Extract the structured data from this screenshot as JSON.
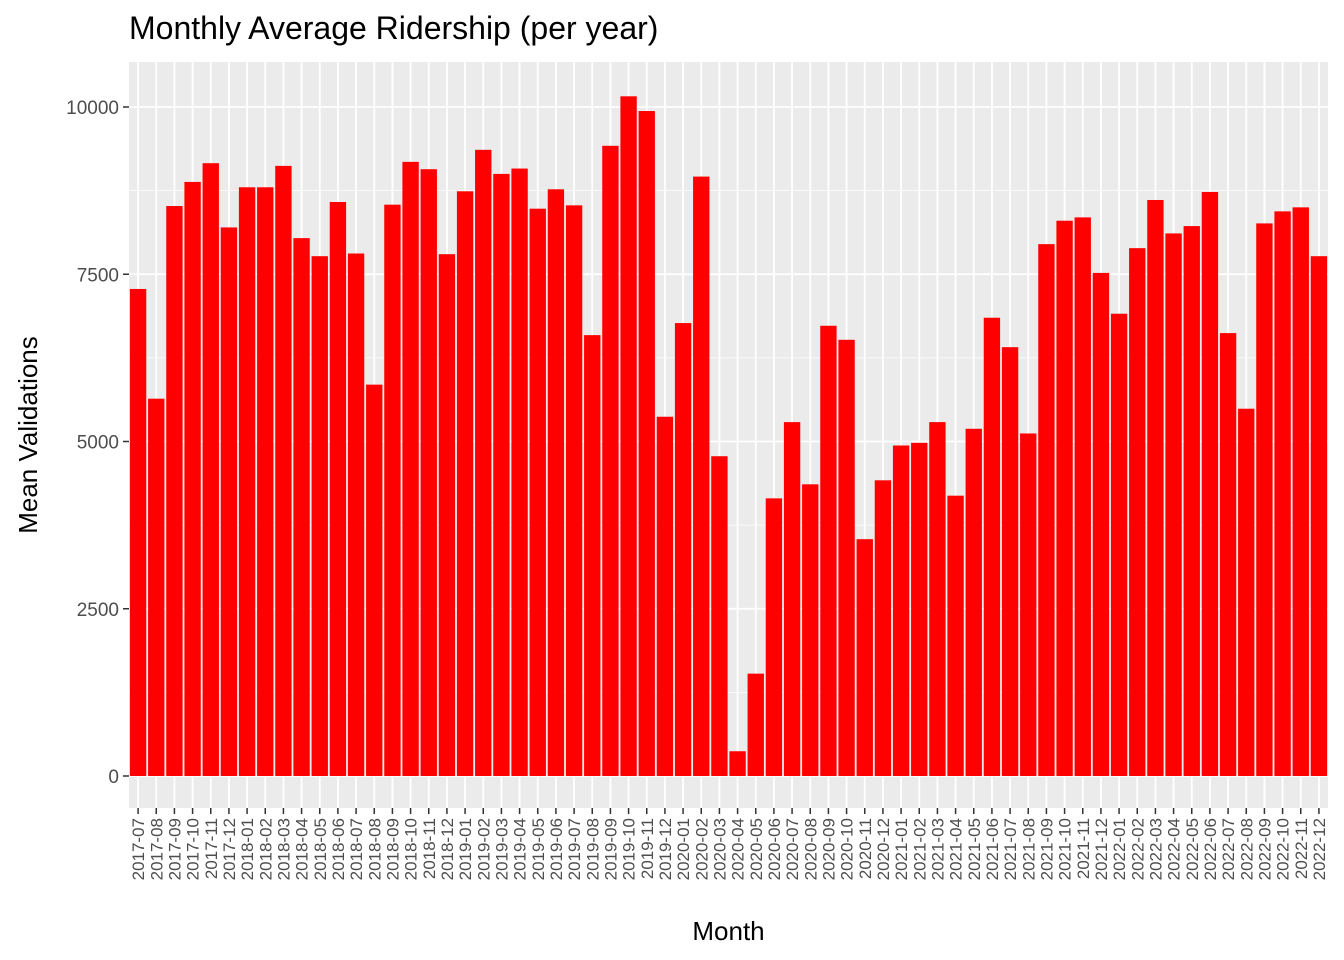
{
  "chart_data": {
    "type": "bar",
    "title": "Monthly Average Ridership (per year)",
    "xlabel": "Month",
    "ylabel": "Mean Validations",
    "ylim": [
      0,
      10700
    ],
    "yticks": [
      0,
      2500,
      5000,
      7500,
      10000
    ],
    "bar_color": "#FF0000",
    "panel_color": "#EBEBEB",
    "grid": true,
    "categories": [
      "2017-07",
      "2017-08",
      "2017-09",
      "2017-10",
      "2017-11",
      "2017-12",
      "2018-01",
      "2018-02",
      "2018-03",
      "2018-04",
      "2018-05",
      "2018-06",
      "2018-07",
      "2018-08",
      "2018-09",
      "2018-10",
      "2018-11",
      "2018-12",
      "2019-01",
      "2019-02",
      "2019-03",
      "2019-04",
      "2019-05",
      "2019-06",
      "2019-07",
      "2019-08",
      "2019-09",
      "2019-10",
      "2019-11",
      "2019-12",
      "2020-01",
      "2020-02",
      "2020-03",
      "2020-04",
      "2020-05",
      "2020-06",
      "2020-07",
      "2020-08",
      "2020-09",
      "2020-10",
      "2020-11",
      "2020-12",
      "2021-01",
      "2021-02",
      "2021-03",
      "2021-04",
      "2021-05",
      "2021-06",
      "2021-07",
      "2021-08",
      "2021-09",
      "2021-10",
      "2021-11",
      "2021-12",
      "2022-01",
      "2022-02",
      "2022-03",
      "2022-04",
      "2022-05",
      "2022-06",
      "2022-07",
      "2022-08",
      "2022-09",
      "2022-10",
      "2022-11",
      "2022-12"
    ],
    "xtick_labels": [
      "2017-07",
      "2017-08",
      "2017-09",
      "2017-10",
      "2017-11",
      "2017-12",
      "2018-01",
      "2018-02",
      "2018-03",
      "2018-04",
      "2018-05",
      "2018-06",
      "2018-07",
      "2018-08",
      "2018-09",
      "2018-10",
      "2018-11",
      "2018-12",
      "2019-01",
      "2019-02",
      "2019-03",
      "2019-04",
      "2019-05",
      "2019-06",
      "2019-07",
      "2019-08",
      "2019-09",
      "2019-10",
      "2019-11",
      "2019-12",
      "2020-01",
      "2020-02",
      "2020-03",
      "2020-04",
      "2020-05",
      "2020-06",
      "2020-07",
      "2020-08",
      "2020-09",
      "2020-10",
      "2020-11",
      "2020-12",
      "2021-01",
      "2021-02",
      "2021-03",
      "2021-04",
      "2021-05",
      "2021-06",
      "2021-07",
      "2021-08",
      "2021-09",
      "2021-10",
      "2021-11",
      "2021-12",
      "2022-01",
      "2022-02",
      "2022-03",
      "2022-04",
      "2022-05",
      "2022-06",
      "2022-07",
      "2022-08",
      "2022-09",
      "2022-10",
      "2022-11",
      "2022-12"
    ],
    "values": [
      7280,
      5640,
      8520,
      8880,
      9160,
      8200,
      8800,
      8800,
      9120,
      8040,
      7770,
      8580,
      7810,
      5850,
      8540,
      9180,
      9070,
      7800,
      8740,
      9360,
      9000,
      9080,
      8480,
      8770,
      8530,
      6590,
      9420,
      10160,
      9940,
      5370,
      6770,
      8960,
      4780,
      370,
      1530,
      4150,
      5290,
      4360,
      6730,
      6520,
      3540,
      4420,
      4940,
      4980,
      5290,
      4190,
      5190,
      6850,
      6410,
      5120,
      7950,
      8300,
      8350,
      7520,
      6910,
      7890,
      8610,
      8110,
      8220,
      8730,
      6620,
      5490,
      8260,
      8440,
      8500,
      7770
    ]
  }
}
